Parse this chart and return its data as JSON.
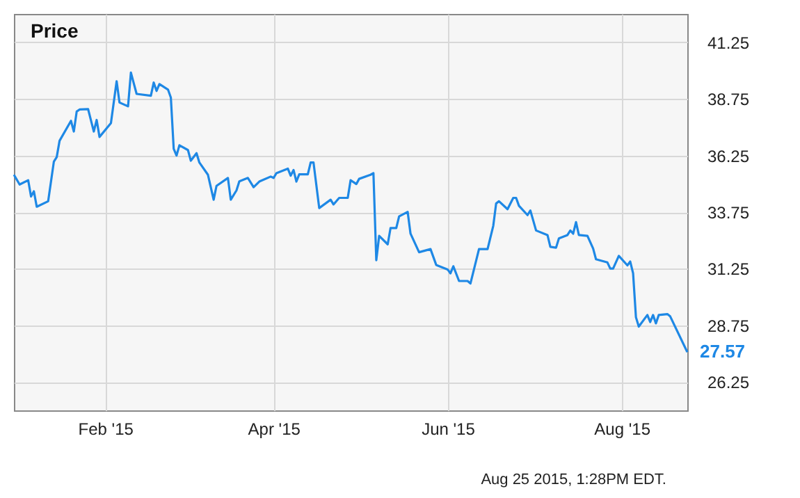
{
  "chart_data": {
    "type": "line",
    "title": "Price",
    "x": [
      "2014-12-31",
      "2015-01-02",
      "2015-01-05",
      "2015-01-06",
      "2015-01-07",
      "2015-01-08",
      "2015-01-12",
      "2015-01-14",
      "2015-01-15",
      "2015-01-16",
      "2015-01-20",
      "2015-01-21",
      "2015-01-22",
      "2015-01-23",
      "2015-01-26",
      "2015-01-28",
      "2015-01-29",
      "2015-01-30",
      "2015-02-03",
      "2015-02-05",
      "2015-02-06",
      "2015-02-09",
      "2015-02-10",
      "2015-02-12",
      "2015-02-17",
      "2015-02-18",
      "2015-02-19",
      "2015-02-20",
      "2015-02-23",
      "2015-02-24",
      "2015-02-25",
      "2015-02-26",
      "2015-02-27",
      "2015-03-02",
      "2015-03-03",
      "2015-03-05",
      "2015-03-06",
      "2015-03-09",
      "2015-03-11",
      "2015-03-12",
      "2015-03-16",
      "2015-03-17",
      "2015-03-19",
      "2015-03-20",
      "2015-03-23",
      "2015-03-25",
      "2015-03-27",
      "2015-03-31",
      "2015-04-01",
      "2015-04-02",
      "2015-04-06",
      "2015-04-07",
      "2015-04-08",
      "2015-04-09",
      "2015-04-10",
      "2015-04-13",
      "2015-04-14",
      "2015-04-15",
      "2015-04-17",
      "2015-04-21",
      "2015-04-22",
      "2015-04-24",
      "2015-04-27",
      "2015-04-28",
      "2015-04-30",
      "2015-05-01",
      "2015-05-05",
      "2015-05-06",
      "2015-05-07",
      "2015-05-08",
      "2015-05-11",
      "2015-05-12",
      "2015-05-14",
      "2015-05-15",
      "2015-05-18",
      "2015-05-19",
      "2015-05-22",
      "2015-05-26",
      "2015-05-28",
      "2015-06-01",
      "2015-06-02",
      "2015-06-03",
      "2015-06-05",
      "2015-06-08",
      "2015-06-09",
      "2015-06-12",
      "2015-06-15",
      "2015-06-17",
      "2015-06-18",
      "2015-06-19",
      "2015-06-22",
      "2015-06-24",
      "2015-06-25",
      "2015-06-26",
      "2015-06-29",
      "2015-06-30",
      "2015-07-02",
      "2015-07-06",
      "2015-07-07",
      "2015-07-09",
      "2015-07-10",
      "2015-07-13",
      "2015-07-14",
      "2015-07-15",
      "2015-07-16",
      "2015-07-17",
      "2015-07-20",
      "2015-07-22",
      "2015-07-23",
      "2015-07-27",
      "2015-07-28",
      "2015-07-29",
      "2015-07-31",
      "2015-08-03",
      "2015-08-04",
      "2015-08-05",
      "2015-08-06",
      "2015-08-07",
      "2015-08-10",
      "2015-08-11",
      "2015-08-12",
      "2015-08-13",
      "2015-08-14",
      "2015-08-17",
      "2015-08-18",
      "2015-08-24"
    ],
    "series": [
      {
        "color": "#1e88e5",
        "values": [
          35.4,
          34.97,
          35.16,
          34.44,
          34.67,
          33.99,
          34.23,
          35.98,
          36.18,
          36.9,
          37.78,
          37.31,
          38.19,
          38.28,
          38.3,
          37.31,
          37.82,
          37.07,
          37.68,
          39.53,
          38.59,
          38.42,
          39.91,
          38.97,
          38.89,
          39.47,
          39.1,
          39.4,
          39.16,
          38.81,
          36.55,
          36.25,
          36.7,
          36.49,
          36.02,
          36.35,
          35.94,
          35.4,
          34.3,
          34.91,
          35.26,
          34.3,
          34.71,
          35.11,
          35.26,
          34.85,
          35.1,
          35.32,
          35.26,
          35.47,
          35.67,
          35.36,
          35.61,
          35.1,
          35.42,
          35.42,
          35.94,
          35.94,
          33.93,
          34.3,
          34.09,
          34.38,
          34.38,
          35.16,
          34.99,
          35.22,
          35.4,
          35.47,
          31.63,
          32.7,
          32.33,
          33.05,
          33.05,
          33.56,
          33.76,
          32.8,
          31.98,
          32.12,
          31.42,
          31.22,
          31.05,
          31.36,
          30.71,
          30.71,
          30.6,
          32.12,
          32.12,
          33.15,
          34.13,
          34.23,
          33.88,
          34.38,
          34.38,
          34.03,
          33.62,
          33.82,
          32.94,
          32.74,
          32.22,
          32.18,
          32.59,
          32.74,
          32.94,
          32.8,
          33.31,
          32.74,
          32.7,
          32.14,
          31.67,
          31.53,
          31.26,
          31.26,
          31.82,
          31.4,
          31.57,
          31.05,
          29.11,
          28.7,
          29.21,
          28.9,
          29.21,
          28.84,
          29.21,
          29.25,
          29.15,
          27.57
        ]
      }
    ],
    "xlim": [
      "2014-12-31",
      "2015-08-24"
    ],
    "xticks": [
      {
        "value": "2015-02-01",
        "label": "Feb '15"
      },
      {
        "value": "2015-04-01",
        "label": "Apr '15"
      },
      {
        "value": "2015-06-01",
        "label": "Jun '15"
      },
      {
        "value": "2015-08-01",
        "label": "Aug '15"
      }
    ],
    "ylim": [
      25,
      42.5
    ],
    "yticks": [
      26.25,
      28.75,
      31.25,
      33.75,
      36.25,
      38.75,
      41.25
    ],
    "grid": true,
    "marker": "none",
    "line_style": "solid",
    "annotations": [
      {
        "text": "27.57",
        "x": "2015-08-24",
        "y": 27.57
      },
      "Aug 25 2015, 1:28PM EDT."
    ]
  }
}
